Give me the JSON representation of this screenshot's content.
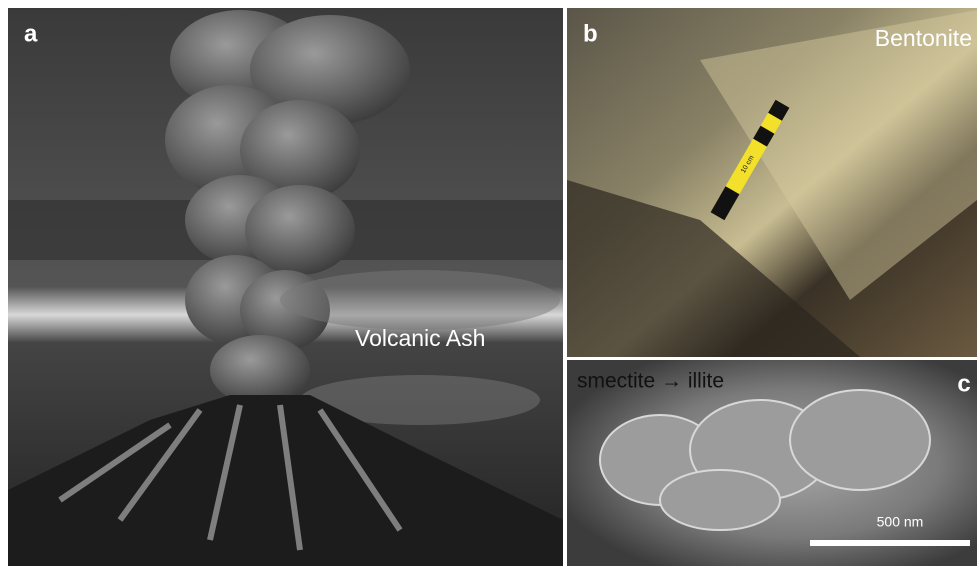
{
  "panels": [
    {
      "label": "a",
      "caption": "Volcanic Ash"
    },
    {
      "label": "b",
      "caption": "Bentonite",
      "scale_label": "10 cm"
    },
    {
      "label": "c",
      "caption": "smectite → illite",
      "scale_bar": "500 nm"
    }
  ]
}
